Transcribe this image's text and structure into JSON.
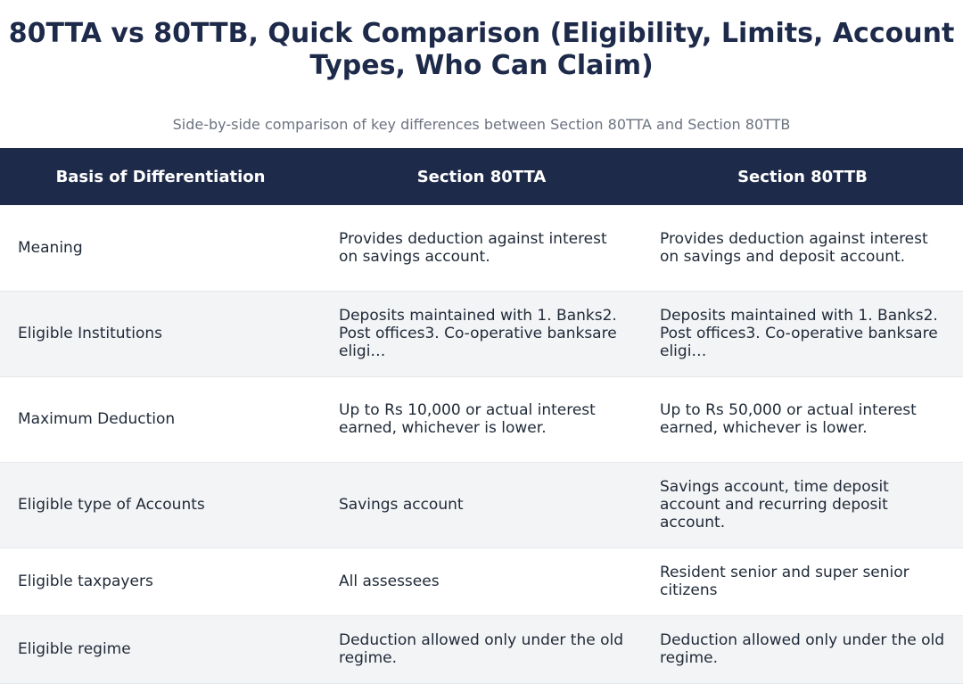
{
  "header": {
    "title": "80TTA vs 80TTB, Quick Comparison (Eligibility, Limits, Account Types, Who Can Claim)",
    "subtitle": "Side-by-side comparison of key differences between Section 80TTA and Section 80TTB"
  },
  "table": {
    "columns": [
      "Basis of Differentiation",
      "Section 80TTA",
      "Section 80TTB"
    ],
    "rows": [
      {
        "basis": "Meaning",
        "tta": "Provides deduction against interest on savings account.",
        "ttb": "Provides deduction against interest on savings and deposit account."
      },
      {
        "basis": "Eligible Institutions",
        "tta": "Deposits maintained with 1. Banks2. Post offices3. Co-operative banksare eligi…",
        "ttb": "Deposits maintained with 1. Banks2. Post offices3. Co-operative banksare eligi…"
      },
      {
        "basis": "Maximum Deduction",
        "tta": "Up to Rs 10,000 or actual interest earned, whichever is lower.",
        "ttb": "Up to Rs 50,000 or actual interest earned, whichever is lower."
      },
      {
        "basis": "Eligible type of Accounts",
        "tta": "Savings account",
        "ttb": "Savings account, time deposit account and recurring deposit account."
      },
      {
        "basis": "Eligible taxpayers",
        "tta": "All assessees",
        "ttb": "Resident senior and super senior citizens"
      },
      {
        "basis": "Eligible regime",
        "tta": "Deduction allowed only under the old regime.",
        "ttb": "Deduction allowed only under the old regime."
      }
    ]
  }
}
